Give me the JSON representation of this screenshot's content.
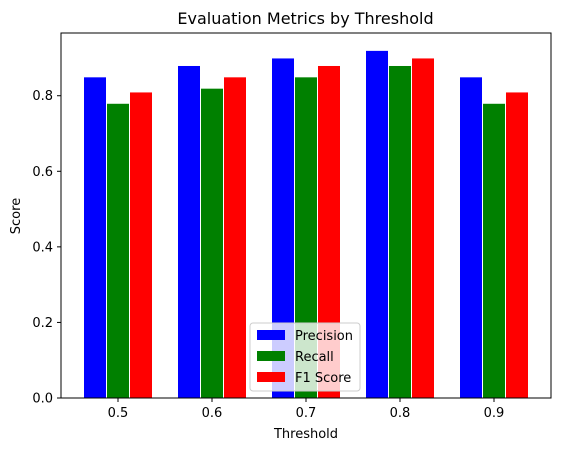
{
  "chart_data": {
    "type": "bar",
    "title": "Evaluation Metrics by Threshold",
    "xlabel": "Threshold",
    "ylabel": "Score",
    "categories": [
      "0.5",
      "0.6",
      "0.7",
      "0.8",
      "0.9"
    ],
    "series": [
      {
        "name": "Precision",
        "color": "#0000ff",
        "values": [
          0.85,
          0.88,
          0.9,
          0.92,
          0.85
        ]
      },
      {
        "name": "Recall",
        "color": "#008000",
        "values": [
          0.78,
          0.82,
          0.85,
          0.88,
          0.78
        ]
      },
      {
        "name": "F1 Score",
        "color": "#ff0000",
        "values": [
          0.81,
          0.85,
          0.88,
          0.9,
          0.81
        ]
      }
    ],
    "ylim": [
      0,
      0.966
    ],
    "yticks": [
      "0.0",
      "0.2",
      "0.4",
      "0.6",
      "0.8"
    ],
    "grid": false,
    "legend_position": "lower center"
  }
}
